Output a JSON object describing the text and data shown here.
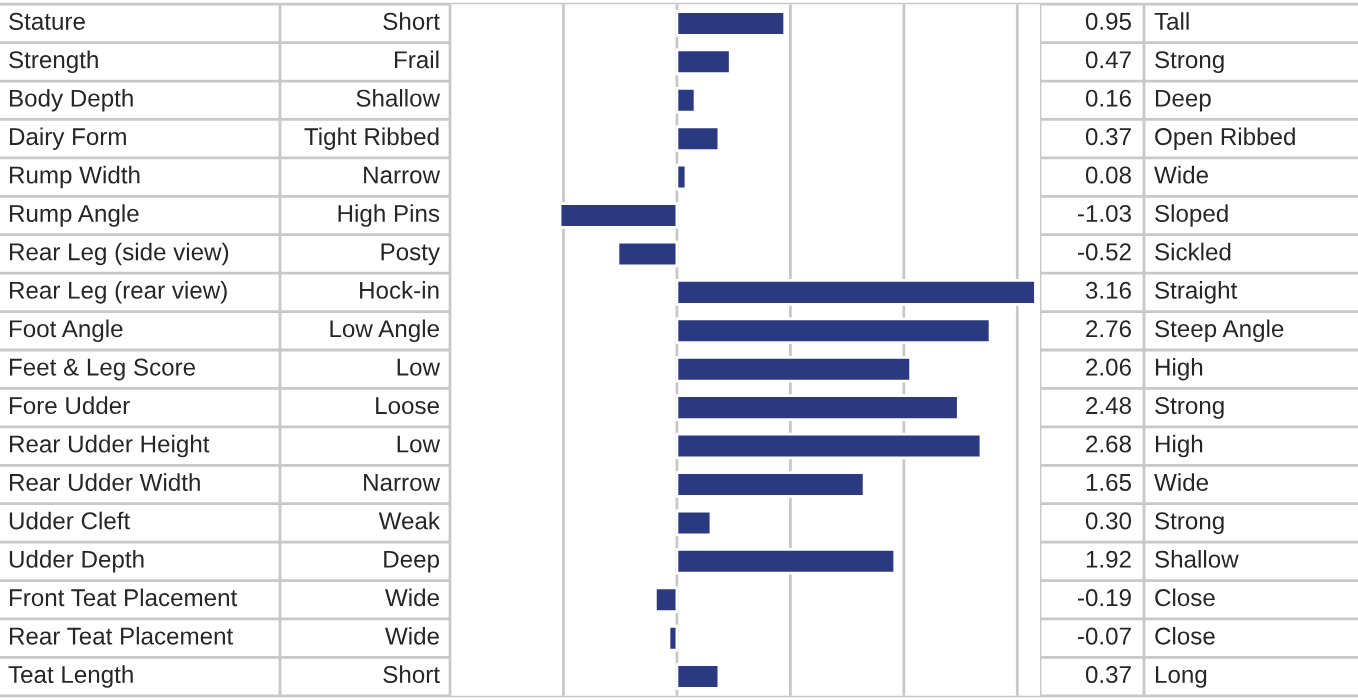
{
  "chart_data": {
    "type": "bar",
    "orientation": "horizontal",
    "categories": [
      "Stature",
      "Strength",
      "Body Depth",
      "Dairy Form",
      "Rump Width",
      "Rump Angle",
      "Rear Leg (side view)",
      "Rear Leg (rear view)",
      "Foot Angle",
      "Feet & Leg Score",
      "Fore Udder",
      "Rear Udder Height",
      "Rear Udder Width",
      "Udder Cleft",
      "Udder Depth",
      "Front Teat Placement",
      "Rear Teat Placement",
      "Teat Length"
    ],
    "values": [
      0.95,
      0.47,
      0.16,
      0.37,
      0.08,
      -1.03,
      -0.52,
      3.16,
      2.76,
      2.06,
      2.48,
      2.68,
      1.65,
      0.3,
      1.92,
      -0.19,
      -0.07,
      0.37
    ],
    "value_labels": [
      "0.95",
      "0.47",
      "0.16",
      "0.37",
      "0.08",
      "-1.03",
      "-0.52",
      "3.16",
      "2.76",
      "2.06",
      "2.48",
      "2.68",
      "1.65",
      "0.30",
      "1.92",
      "-0.19",
      "-0.07",
      "0.37"
    ],
    "annotations": [
      "Short",
      "Frail",
      "Shallow",
      "Tight Ribbed",
      "Narrow",
      "High Pins",
      "Posty",
      "Hock-in",
      "Low Angle",
      "Low",
      "Loose",
      "Low",
      "Narrow",
      "Weak",
      "Deep",
      "Wide",
      "Wide",
      "Short"
    ],
    "y2_categories": [
      "Tall",
      "Strong",
      "Deep",
      "Open Ribbed",
      "Wide",
      "Sloped",
      "Sickled",
      "Straight",
      "Steep Angle",
      "High",
      "Strong",
      "High",
      "Wide",
      "Strong",
      "Shallow",
      "Close",
      "Close",
      "Long"
    ],
    "color": "#2b3a80",
    "xlim": [
      -2,
      3.2
    ],
    "xticks": [
      {
        "value": -2,
        "label": null
      },
      {
        "value": -1,
        "label": null
      },
      {
        "value": 0,
        "label": null
      },
      {
        "value": 1,
        "label": null
      },
      {
        "value": 2,
        "label": null
      },
      {
        "value": 3,
        "label": null
      }
    ],
    "grid": "x"
  }
}
